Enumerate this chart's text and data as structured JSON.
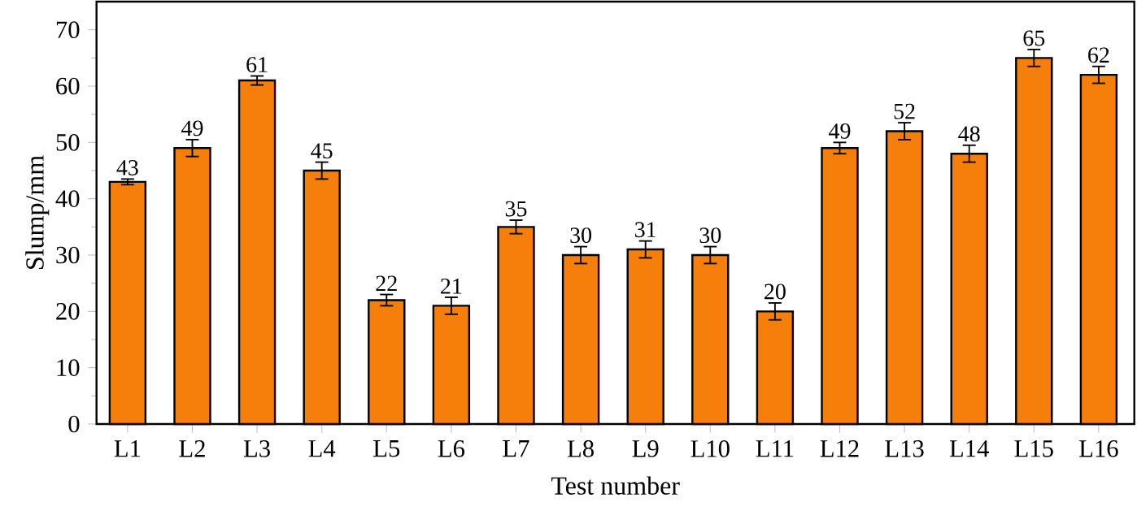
{
  "chart_data": {
    "type": "bar",
    "xlabel": "Test number",
    "ylabel": "Slump/mm",
    "categories": [
      "L1",
      "L2",
      "L3",
      "L4",
      "L5",
      "L6",
      "L7",
      "L8",
      "L9",
      "L10",
      "L11",
      "L12",
      "L13",
      "L14",
      "L15",
      "L16"
    ],
    "values": [
      43,
      49,
      61,
      45,
      22,
      21,
      35,
      30,
      31,
      30,
      20,
      49,
      52,
      48,
      65,
      62
    ],
    "errors": [
      0.5,
      1.5,
      0.8,
      1.5,
      1,
      1.5,
      1.2,
      1.5,
      1.5,
      1.5,
      1.5,
      1,
      1.5,
      1.5,
      1.5,
      1.5
    ],
    "color": "#f57f0a",
    "data_labels": true,
    "ylim": [
      0,
      75
    ],
    "yticks": [
      0,
      10,
      20,
      30,
      40,
      50,
      60,
      70
    ],
    "grid": false
  }
}
